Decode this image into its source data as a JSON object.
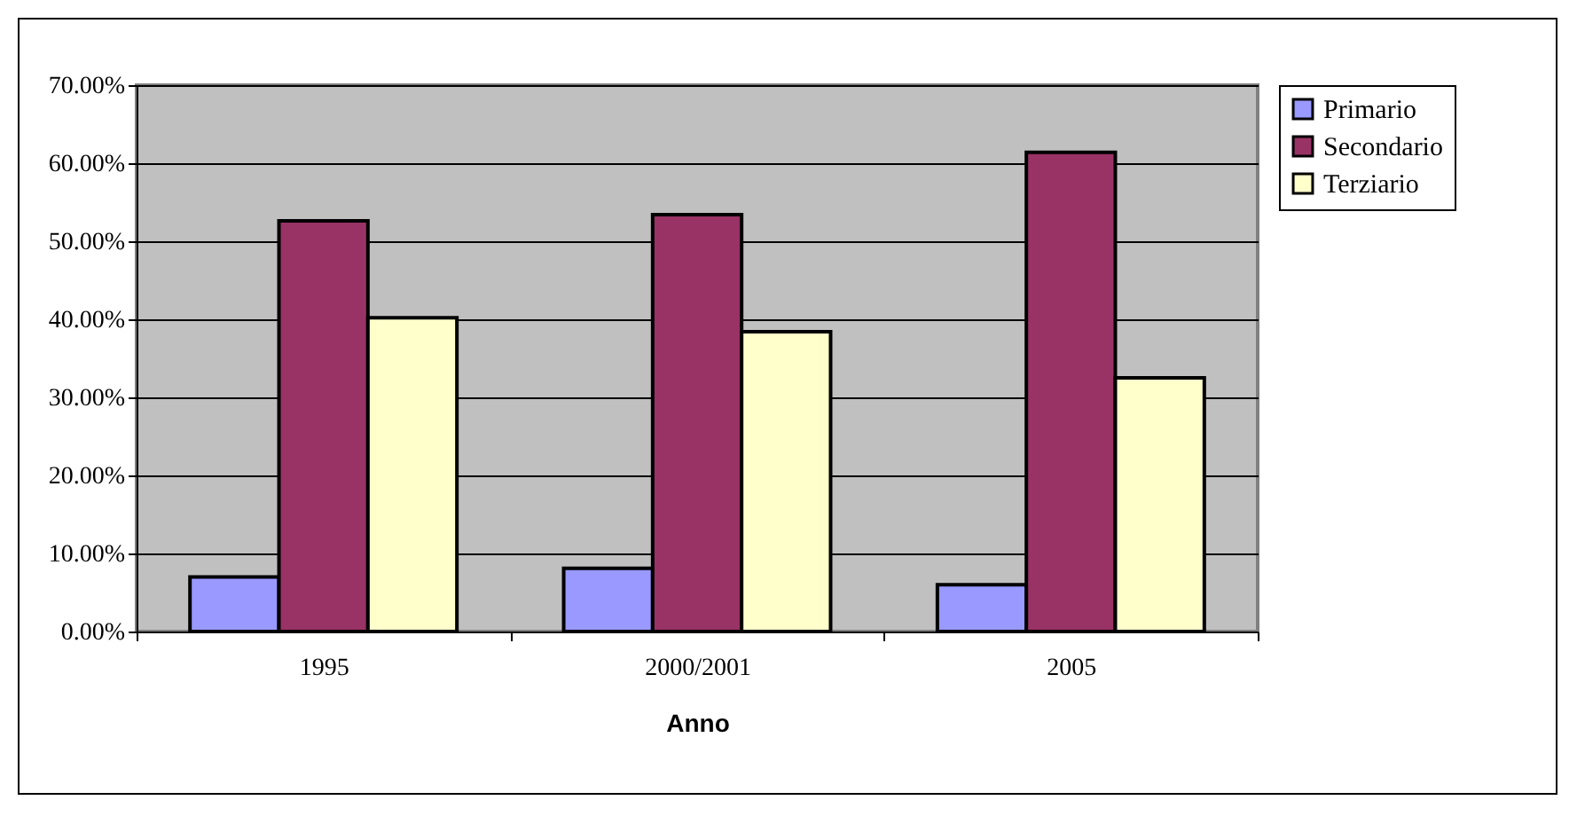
{
  "chart_data": {
    "type": "bar",
    "xlabel": "Anno",
    "categories": [
      "1995",
      "2000/2001",
      "2005"
    ],
    "series": [
      {
        "name": "Primario",
        "color": "#9999ff",
        "values": [
          7.0,
          8.1,
          6.0
        ]
      },
      {
        "name": "Secondario",
        "color": "#993366",
        "values": [
          52.6,
          53.4,
          61.4
        ]
      },
      {
        "name": "Terziario",
        "color": "#ffffcc",
        "values": [
          40.2,
          38.4,
          32.5
        ]
      }
    ],
    "ylim": [
      0,
      70
    ],
    "yticks": [
      {
        "value": 0,
        "label": "0.00%"
      },
      {
        "value": 10,
        "label": "10.00%"
      },
      {
        "value": 20,
        "label": "20.00%"
      },
      {
        "value": 30,
        "label": "30.00%"
      },
      {
        "value": 40,
        "label": "40.00%"
      },
      {
        "value": 50,
        "label": "50.00%"
      },
      {
        "value": 60,
        "label": "60.00%"
      },
      {
        "value": 70,
        "label": "70.00%"
      }
    ],
    "grid": "y",
    "legend": "right"
  }
}
